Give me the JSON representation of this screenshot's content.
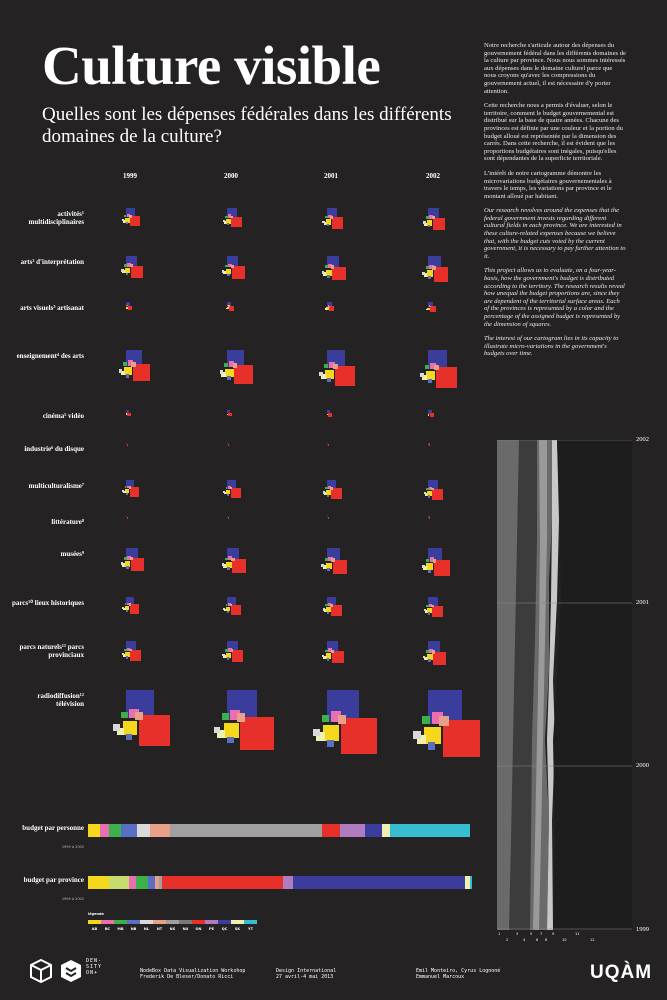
{
  "header": {
    "title": "Culture visible",
    "subtitle": "Quelles sont les dépenses fédérales dans les différents domaines de la culture?"
  },
  "intro": {
    "p1": "Notre recherche s'articule autour des dépenses du gouvernement fédéral dans les différents domaines de la culture par province. Nous nous sommes intéressés aux dépenses dans le domaine culturel parce que nous croyons qu'avec les compressions du gouvernement actuel, il est nécessaire d'y porter attention.",
    "p2": "Cette recherche nous a permis d'évaluer, selon le territoire, comment le budget gouvernemental est distribué sur la base de quatre années. Chacune des provinces est définie par une couleur et la portion du budget alloué est représentée par la dimension des carrés. Dans cette recherche, il est évident que les proportions budgétaires sont inégales, puisqu'elles sont dépendantes de la superficie territoriale.",
    "p3": "L'intérêt de notre cartogramme démontre les microvariations budgétaires gouvernementales à travers le temps, les variations par province et le montant alloué par habitant.",
    "p4": "Our research revolves around the expenses that the federal government invests regarding different cultural fields in each province. We are interested in these culture-related expenses because we believe that, with the budget cuts voted by the current government, it is necessary to pay further attention to it.",
    "p5": "This project allows us to evaluate, on a four-year-basis, how the government's budget is distributed according to the territory. The research results reveal how unequal the budget proportions are, since they are dependent of the territorial surface areas. Each of the provinces is represented by a color and the percentage of the assigned budget is represented by the dimension of squares.",
    "p6": "The interest of our cartogram lies in its capacity to illustrate micro-variations in the government's budgets over time."
  },
  "years": [
    "1999",
    "2000",
    "2001",
    "2002"
  ],
  "domains": [
    {
      "label": "activités¹ multidisciplinaires",
      "scale": 0.55
    },
    {
      "label": "arts² d'interprétation",
      "scale": 0.65
    },
    {
      "label": "arts visuels³ artisanat",
      "scale": 0.25
    },
    {
      "label": "enseignement⁴ des arts",
      "scale": 0.95
    },
    {
      "label": "cinéma⁵ vidéo",
      "scale": 0.18
    },
    {
      "label": "industrie⁶ du disque",
      "scale": 0.08
    },
    {
      "label": "multiculturalisme⁷",
      "scale": 0.5
    },
    {
      "label": "littérature⁸",
      "scale": 0.08
    },
    {
      "label": "musées⁹",
      "scale": 0.7
    },
    {
      "label": "parcs¹⁰ lieux historiques",
      "scale": 0.5
    },
    {
      "label": "parcs naturels¹¹ parcs provinciaux",
      "scale": 0.6
    },
    {
      "label": "radiodiffusion¹² télévision",
      "scale": 1.7
    }
  ],
  "provinces": [
    {
      "code": "AB",
      "color": "#f5d71e"
    },
    {
      "code": "BC",
      "color": "#e96fb0"
    },
    {
      "code": "MB",
      "color": "#3cb04a"
    },
    {
      "code": "NB",
      "color": "#5a6ec4"
    },
    {
      "code": "NL",
      "color": "#d9d9d9"
    },
    {
      "code": "NT",
      "color": "#e8a08a"
    },
    {
      "code": "NS",
      "color": "#a0a0a0"
    },
    {
      "code": "NU",
      "color": "#7a7a7a"
    },
    {
      "code": "ON",
      "color": "#e8302a"
    },
    {
      "code": "PE",
      "color": "#b07cc0"
    },
    {
      "code": "QC",
      "color": "#3a3d9c"
    },
    {
      "code": "SK",
      "color": "#eef0b0"
    },
    {
      "code": "YT",
      "color": "#38bcd0"
    }
  ],
  "bars": {
    "personne_label": "budget par personne",
    "personne_sub": "1999 à 2002",
    "province_label": "budget par province",
    "province_sub": "1999 à 2002",
    "personne": [
      {
        "color": "#f5d71e",
        "w": 3.0
      },
      {
        "color": "#e96fb0",
        "w": 2.5
      },
      {
        "color": "#3cb04a",
        "w": 3.0
      },
      {
        "color": "#5a6ec4",
        "w": 4.0
      },
      {
        "color": "#d9d9d9",
        "w": 3.5
      },
      {
        "color": "#e8a08a",
        "w": 5.0
      },
      {
        "color": "#a0a0a0",
        "w": 39.0
      },
      {
        "color": "#e8302a",
        "w": 4.5
      },
      {
        "color": "#b07cc0",
        "w": 6.5
      },
      {
        "color": "#3a3d9c",
        "w": 4.5
      },
      {
        "color": "#eef0b0",
        "w": 2.0
      },
      {
        "color": "#38bcd0",
        "w": 20.5
      }
    ],
    "province": [
      {
        "color": "#f5d71e",
        "w": 5.5
      },
      {
        "color": "#c8dc6e",
        "w": 5.0
      },
      {
        "color": "#e96fb0",
        "w": 1.8
      },
      {
        "color": "#3cb04a",
        "w": 3.0
      },
      {
        "color": "#5a6ec4",
        "w": 2.0
      },
      {
        "color": "#e8a08a",
        "w": 1.0
      },
      {
        "color": "#a0a0a0",
        "w": 0.8
      },
      {
        "color": "#e8302a",
        "w": 31.0
      },
      {
        "color": "#b07cc0",
        "w": 2.6
      },
      {
        "color": "#3a3d9c",
        "w": 44.0
      },
      {
        "color": "#eef0b0",
        "w": 1.2
      },
      {
        "color": "#38bcd0",
        "w": 0.6
      }
    ]
  },
  "legend_title": "légende",
  "stream_years": [
    "2002",
    "2001",
    "2000",
    "1999"
  ],
  "stream_axis": [
    "1",
    "2",
    "3",
    "4",
    "5",
    "6",
    "7",
    "8",
    "9",
    "10",
    "11",
    "12"
  ],
  "footer": {
    "density1": "DEN-",
    "density2": "SITY",
    "density3": "ON+",
    "workshop1": "NodeBox Data Visualization Workshop",
    "workshop2": "Frederik De Bleser/Donato Ricci",
    "design1": "Design International",
    "design2": "27 avril-4 mai 2013",
    "authors1": "Emil Monteiro, Cyrus Lognoné",
    "authors2": "Emmanuel Marcoux",
    "uqam": "UQÀM"
  }
}
